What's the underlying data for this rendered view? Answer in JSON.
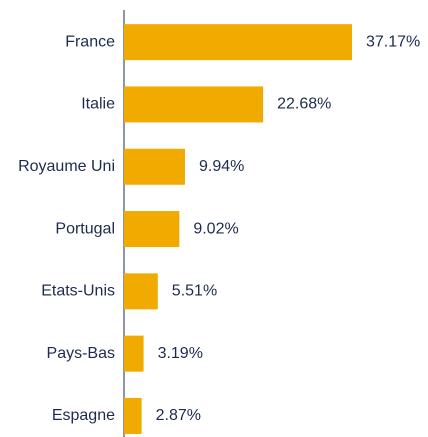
{
  "chart_data": {
    "type": "barh",
    "categories": [
      "France",
      "Italie",
      "Royaume Uni",
      "Portugal",
      "Etats-Unis",
      "Pays-Bas",
      "Espagne"
    ],
    "values": [
      37.17,
      22.68,
      9.94,
      9.02,
      5.51,
      3.19,
      2.87
    ],
    "value_labels": [
      "37.17%",
      "22.68%",
      "9.94%",
      "9.02%",
      "5.51%",
      "3.19%",
      "2.87%"
    ],
    "color": "#f0aa00"
  }
}
